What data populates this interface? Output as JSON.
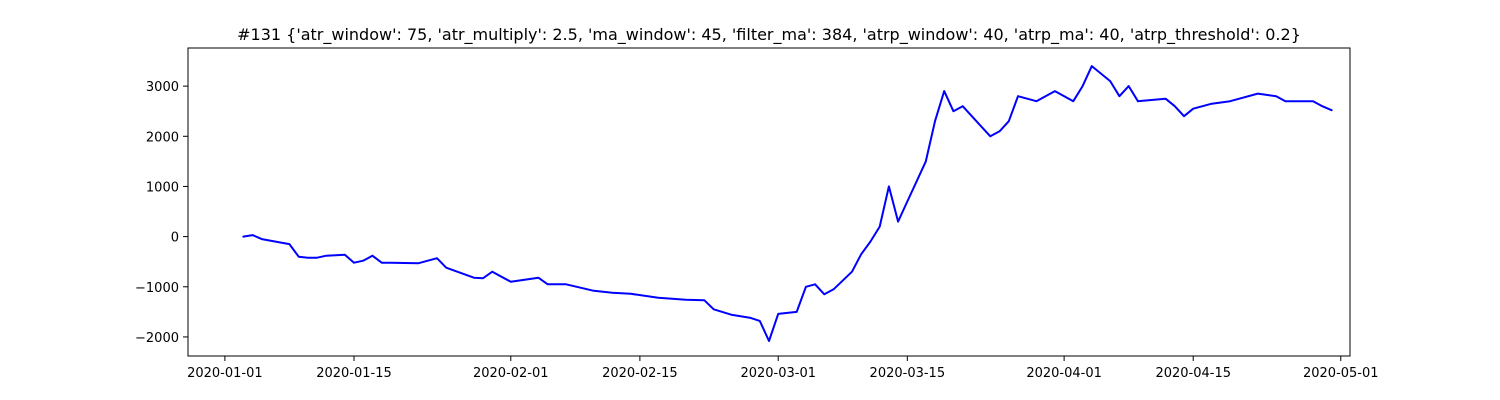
{
  "chart_data": {
    "type": "line",
    "title": "#131 {'atr_window': 75, 'atr_multiply': 2.5, 'ma_window': 45, 'filter_ma': 384, 'atrp_window': 40, 'atrp_ma': 40, 'atrp_threshold': 0.2}",
    "xlabel": "",
    "ylabel": "",
    "x_axis_type": "date",
    "xlim": [
      "2019-12-28",
      "2020-05-02"
    ],
    "ylim": [
      -2380,
      3760
    ],
    "grid": false,
    "legend": "none",
    "line_color": "#0000ff",
    "x_ticks": [
      "2020-01-01",
      "2020-01-15",
      "2020-02-01",
      "2020-02-15",
      "2020-03-01",
      "2020-03-15",
      "2020-04-01",
      "2020-04-15",
      "2020-05-01"
    ],
    "y_ticks": [
      -2000,
      -1000,
      0,
      1000,
      2000,
      3000
    ],
    "series": [
      {
        "x": [
          "2020-01-03",
          "2020-01-04",
          "2020-01-05",
          "2020-01-08",
          "2020-01-09",
          "2020-01-10",
          "2020-01-11",
          "2020-01-12",
          "2020-01-14",
          "2020-01-15",
          "2020-01-16",
          "2020-01-17",
          "2020-01-18",
          "2020-01-19",
          "2020-01-22",
          "2020-01-24",
          "2020-01-25",
          "2020-01-28",
          "2020-01-29",
          "2020-01-30",
          "2020-02-01",
          "2020-02-04",
          "2020-02-05",
          "2020-02-07",
          "2020-02-10",
          "2020-02-12",
          "2020-02-14",
          "2020-02-17",
          "2020-02-20",
          "2020-02-22",
          "2020-02-23",
          "2020-02-25",
          "2020-02-27",
          "2020-02-28",
          "2020-02-29",
          "2020-03-01",
          "2020-03-02",
          "2020-03-03",
          "2020-03-04",
          "2020-03-05",
          "2020-03-06",
          "2020-03-07",
          "2020-03-09",
          "2020-03-10",
          "2020-03-11",
          "2020-03-12",
          "2020-03-13",
          "2020-03-14",
          "2020-03-15",
          "2020-03-16",
          "2020-03-17",
          "2020-03-18",
          "2020-03-19",
          "2020-03-20",
          "2020-03-21",
          "2020-03-23",
          "2020-03-24",
          "2020-03-25",
          "2020-03-26",
          "2020-03-27",
          "2020-03-29",
          "2020-03-31",
          "2020-04-02",
          "2020-04-03",
          "2020-04-04",
          "2020-04-06",
          "2020-04-07",
          "2020-04-08",
          "2020-04-09",
          "2020-04-12",
          "2020-04-13",
          "2020-04-14",
          "2020-04-15",
          "2020-04-17",
          "2020-04-19",
          "2020-04-20",
          "2020-04-22",
          "2020-04-24",
          "2020-04-25",
          "2020-04-28",
          "2020-04-29",
          "2020-04-30"
        ],
        "values": [
          0,
          30,
          -50,
          -150,
          -400,
          -420,
          -420,
          -380,
          -360,
          -520,
          -480,
          -380,
          -520,
          -520,
          -530,
          -430,
          -620,
          -820,
          -830,
          -700,
          -900,
          -820,
          -950,
          -950,
          -1080,
          -1120,
          -1140,
          -1220,
          -1260,
          -1270,
          -1450,
          -1560,
          -1620,
          -1680,
          -2080,
          -1540,
          -1520,
          -1500,
          -1000,
          -950,
          -1150,
          -1050,
          -700,
          -350,
          -100,
          200,
          1000,
          300,
          700,
          1100,
          1500,
          2300,
          2900,
          2500,
          2600,
          2200,
          2000,
          2100,
          2300,
          2800,
          2700,
          2900,
          2700,
          3000,
          3400,
          3100,
          2800,
          3000,
          2700,
          2750,
          2600,
          2400,
          2550,
          2650,
          2700,
          2750,
          2850,
          2800,
          2700,
          2700,
          2600,
          2520
        ]
      }
    ]
  }
}
